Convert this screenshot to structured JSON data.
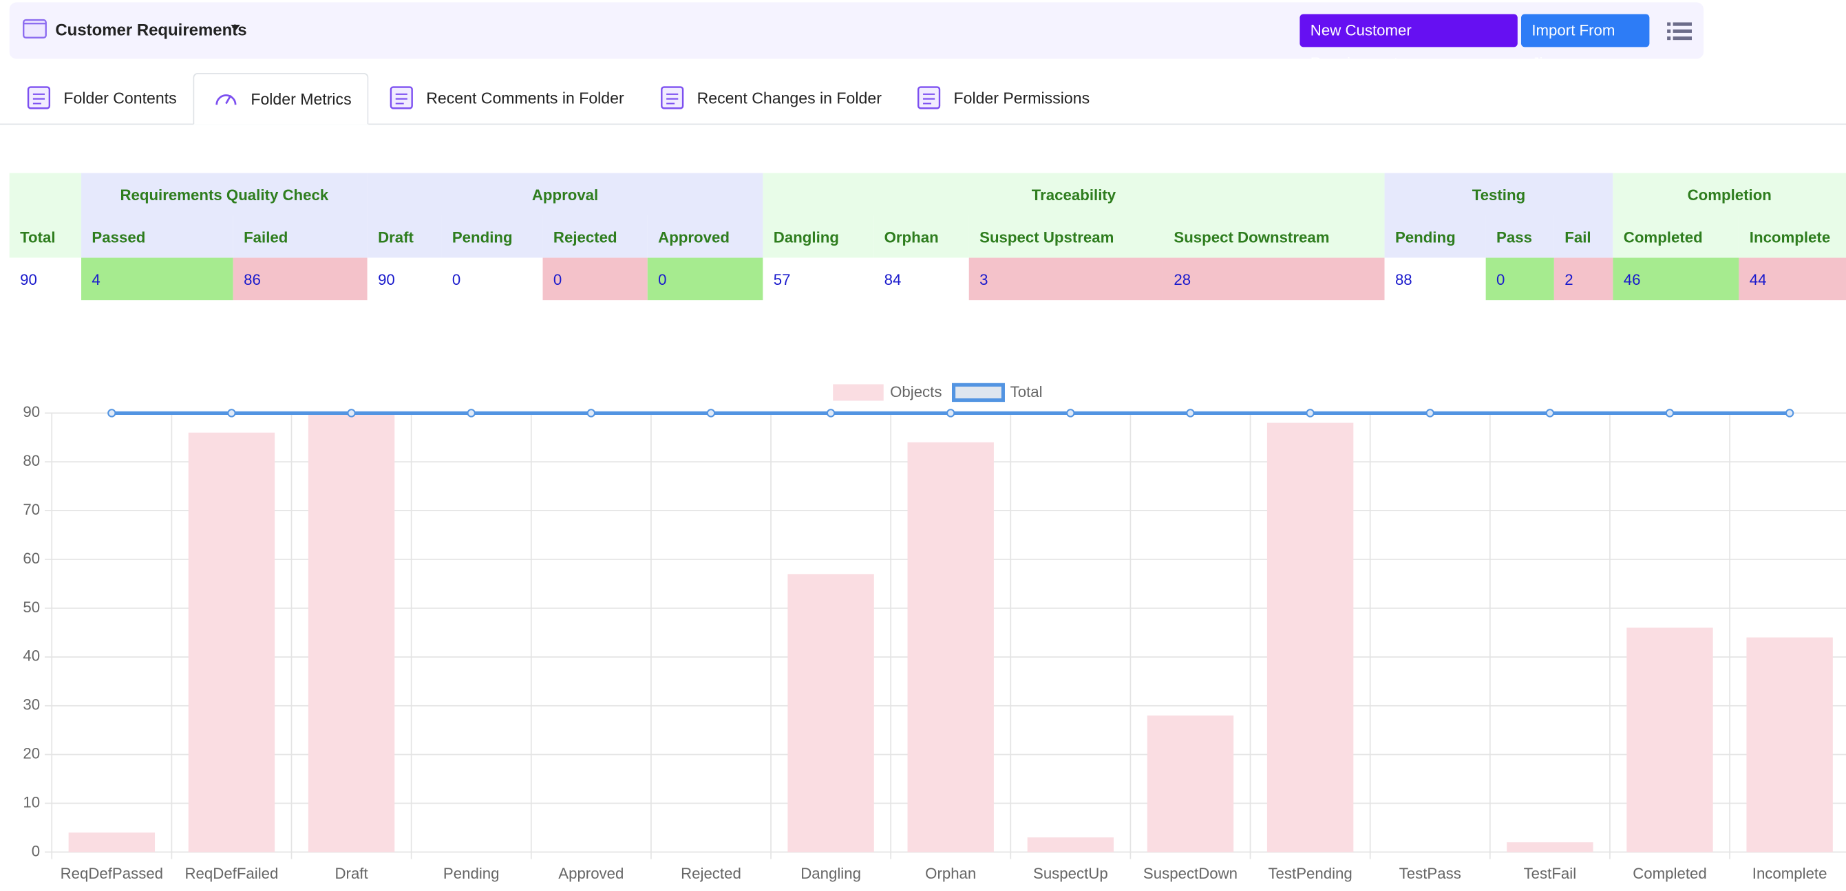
{
  "header": {
    "title": "Customer Requirements",
    "buttons": [
      "New Customer Requirements",
      "Import From Jira"
    ]
  },
  "tabs": {
    "items": [
      "Folder Contents",
      "Folder Metrics",
      "Recent Comments in Folder",
      "Recent Changes in Folder",
      "Folder Permissions"
    ],
    "active": 1
  },
  "table": {
    "groups": [
      "Requirements Quality Check",
      "Approval",
      "Traceability",
      "Testing",
      "Completion"
    ],
    "columns": [
      "Total",
      "Passed",
      "Failed",
      "Draft",
      "Pending",
      "Rejected",
      "Approved",
      "Dangling",
      "Orphan",
      "Suspect Upstream",
      "Suspect Downstream",
      "Pending",
      "Pass",
      "Fail",
      "Completed",
      "Incomplete"
    ],
    "rows": [
      [
        90,
        4,
        86,
        90,
        0,
        0,
        0,
        57,
        84,
        3,
        28,
        88,
        0,
        2,
        46,
        44
      ]
    ]
  },
  "chart_data": {
    "type": "bar",
    "categories": [
      "ReqDefPassed",
      "ReqDefFailed",
      "Draft",
      "Pending",
      "Approved",
      "Rejected",
      "Dangling",
      "Orphan",
      "SuspectUp",
      "SuspectDown",
      "TestPending",
      "TestPass",
      "TestFail",
      "Completed",
      "Incomplete"
    ],
    "series": [
      {
        "name": "Objects",
        "type": "bar",
        "color": "#fadde2",
        "values": [
          4,
          86,
          90,
          0,
          0,
          0,
          57,
          84,
          3,
          28,
          88,
          0,
          2,
          46,
          44
        ]
      },
      {
        "name": "Total",
        "type": "line",
        "color": "#5294e2",
        "values": [
          90,
          90,
          90,
          90,
          90,
          90,
          90,
          90,
          90,
          90,
          90,
          90,
          90,
          90,
          90
        ]
      }
    ],
    "ylim": [
      0,
      90
    ],
    "yticks": [
      0,
      10,
      20,
      30,
      40,
      50,
      60,
      70,
      80,
      90
    ],
    "grid": true
  }
}
